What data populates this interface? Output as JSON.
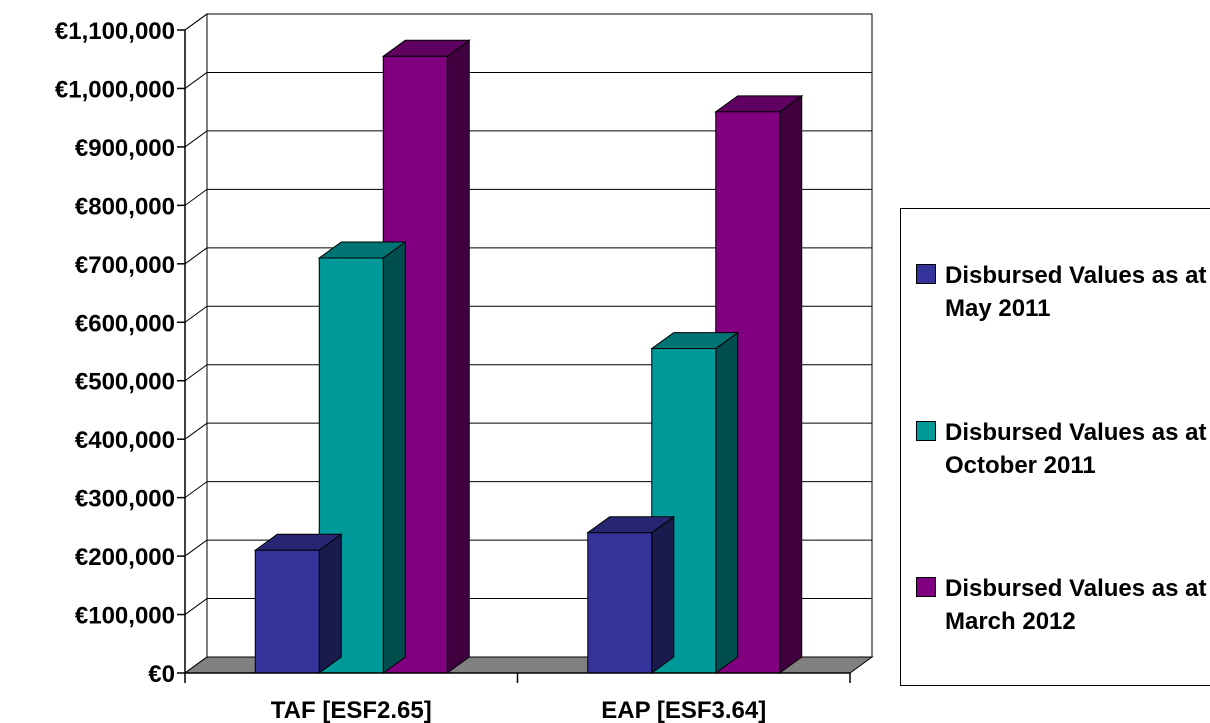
{
  "chart_data": {
    "type": "bar",
    "categories": [
      "TAF [ESF2.65]",
      "EAP [ESF3.64]"
    ],
    "series": [
      {
        "name": "Disbursed Values as at May 2011",
        "color": "#333399",
        "values": [
          210000,
          240000
        ]
      },
      {
        "name": "Disbursed Values as at October 2011",
        "color": "#009999",
        "values": [
          710000,
          555000
        ]
      },
      {
        "name": "Disbursed Values as at March 2012",
        "color": "#800080",
        "values": [
          1055000,
          960000
        ]
      }
    ],
    "yticks": [
      "€0",
      "€100,000",
      "€200,000",
      "€300,000",
      "€400,000",
      "€500,000",
      "€600,000",
      "€700,000",
      "€800,000",
      "€900,000",
      "€1,000,000",
      "€1,100,000"
    ],
    "ylim": [
      0,
      1100000
    ],
    "grid": true,
    "three_d": true,
    "legend_position": "right"
  }
}
